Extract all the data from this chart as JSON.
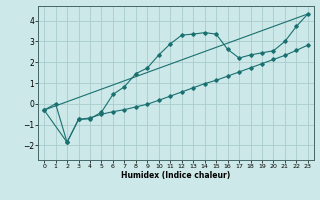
{
  "title": "",
  "xlabel": "Humidex (Indice chaleur)",
  "ylabel": "",
  "background_color": "#cce8e8",
  "grid_color": "#aacccc",
  "line_color": "#1a7070",
  "xlim": [
    -0.5,
    23.5
  ],
  "ylim": [
    -2.7,
    4.7
  ],
  "xticks": [
    0,
    1,
    2,
    3,
    4,
    5,
    6,
    7,
    8,
    9,
    10,
    11,
    12,
    13,
    14,
    15,
    16,
    17,
    18,
    19,
    20,
    21,
    22,
    23
  ],
  "yticks": [
    -2,
    -1,
    0,
    1,
    2,
    3,
    4
  ],
  "curve1_x": [
    0,
    1,
    2,
    3,
    4,
    5,
    6,
    7,
    8,
    9,
    10,
    11,
    12,
    13,
    14,
    15,
    16,
    17,
    18,
    19,
    20,
    21,
    22,
    23
  ],
  "curve1_y": [
    -0.3,
    0.0,
    -1.85,
    -0.75,
    -0.72,
    -0.4,
    0.45,
    0.82,
    1.45,
    1.72,
    2.35,
    2.88,
    3.3,
    3.35,
    3.42,
    3.35,
    2.62,
    2.2,
    2.35,
    2.45,
    2.55,
    3.0,
    3.72,
    4.32
  ],
  "curve2_x": [
    0,
    2,
    3,
    4,
    5,
    6,
    7,
    8,
    9,
    10,
    11,
    12,
    13,
    14,
    15,
    16,
    17,
    18,
    19,
    20,
    21,
    22,
    23
  ],
  "curve2_y": [
    -0.3,
    -1.85,
    -0.75,
    -0.68,
    -0.5,
    -0.38,
    -0.28,
    -0.15,
    -0.02,
    0.17,
    0.37,
    0.57,
    0.77,
    0.97,
    1.13,
    1.33,
    1.53,
    1.73,
    1.93,
    2.13,
    2.33,
    2.57,
    2.82
  ],
  "curve3_x": [
    0,
    23
  ],
  "curve3_y": [
    -0.3,
    4.32
  ],
  "figsize": [
    3.2,
    2.0
  ],
  "dpi": 100
}
